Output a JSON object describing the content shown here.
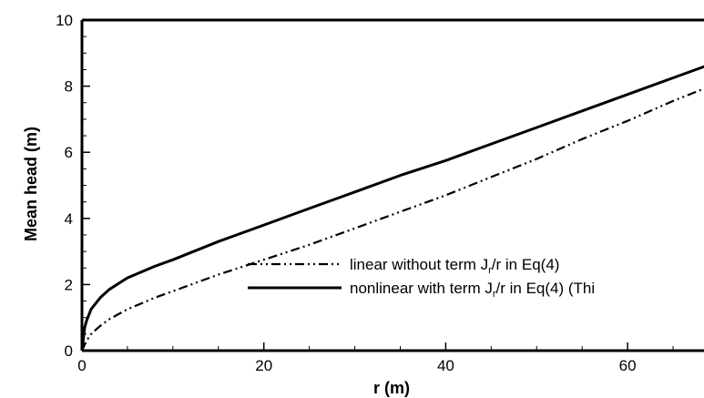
{
  "chart_data": {
    "type": "line",
    "title": "",
    "xlabel": "r (m)",
    "ylabel": "Mean head (m)",
    "xlim": [
      0,
      70
    ],
    "ylim": [
      0,
      10
    ],
    "x_ticks": [
      "0",
      "20",
      "40",
      "60"
    ],
    "y_ticks": [
      "0",
      "2",
      "4",
      "6",
      "8",
      "10"
    ],
    "grid": false,
    "legend_position": "center-right",
    "legend": [
      {
        "text": "linear without term J",
        "sub": "r",
        "tail": "/r in Eq(4)"
      },
      {
        "text": "nonlinear with term J",
        "sub": "r",
        "tail": "/r in Eq(4) (Thi"
      }
    ],
    "series": [
      {
        "name": "linear without term Jr/r in Eq(4)",
        "style": "dash-dot-dot",
        "x": [
          0,
          0.5,
          1,
          2,
          3,
          5,
          8,
          10,
          15,
          20,
          25,
          30,
          35,
          40,
          45,
          50,
          55,
          60,
          65,
          70
        ],
        "y": [
          0,
          0.3,
          0.5,
          0.75,
          0.95,
          1.25,
          1.6,
          1.8,
          2.3,
          2.75,
          3.2,
          3.7,
          4.2,
          4.7,
          5.25,
          5.8,
          6.4,
          6.95,
          7.55,
          8.1
        ]
      },
      {
        "name": "nonlinear with term Jr/r in Eq(4) (Thi",
        "style": "solid",
        "x": [
          0,
          0.3,
          0.5,
          1,
          2,
          3,
          5,
          8,
          10,
          15,
          20,
          25,
          30,
          35,
          40,
          45,
          50,
          55,
          60,
          65,
          70
        ],
        "y": [
          0,
          0.7,
          0.9,
          1.25,
          1.6,
          1.85,
          2.2,
          2.55,
          2.75,
          3.3,
          3.8,
          4.3,
          4.8,
          5.3,
          5.75,
          6.25,
          6.75,
          7.25,
          7.75,
          8.25,
          8.75
        ]
      }
    ]
  }
}
